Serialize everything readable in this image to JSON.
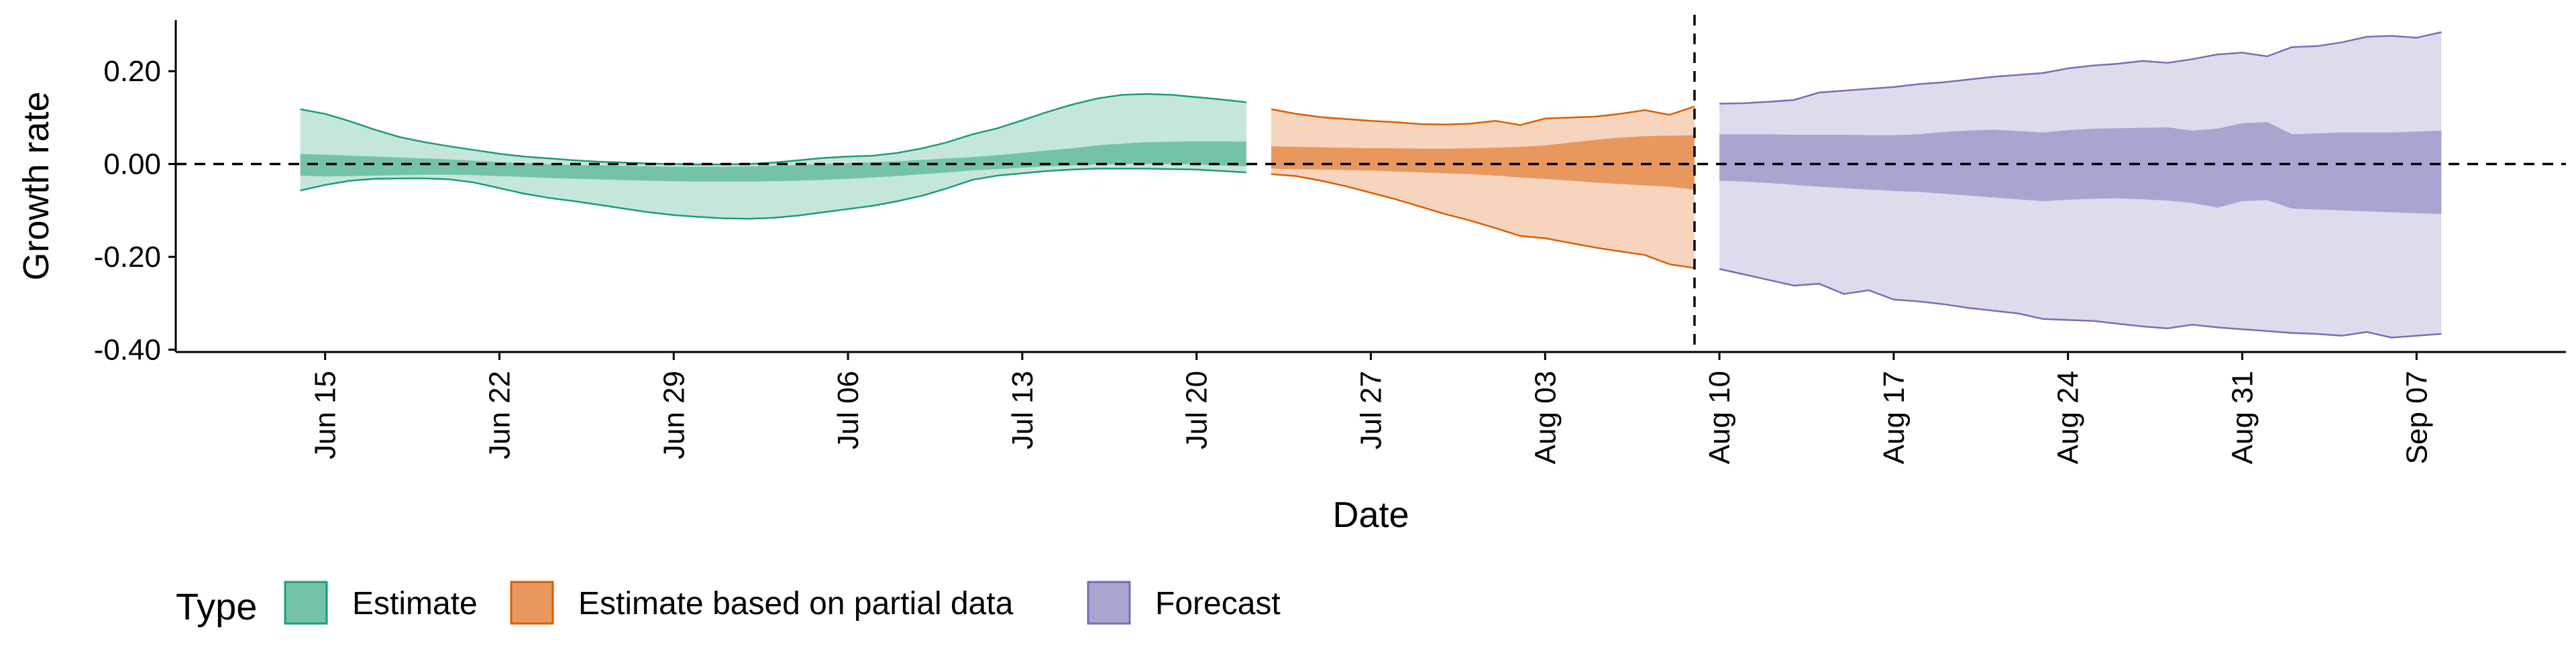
{
  "chart_data": {
    "type": "area",
    "xlabel": "Date",
    "ylabel": "Growth rate",
    "xlim": [
      "2020-06-09",
      "2020-09-13"
    ],
    "ylim": [
      -0.405,
      0.31
    ],
    "reference_line_y": 0.0,
    "vertical_line_x": "2020-08-09",
    "x_ticks": [
      {
        "date": "2020-06-15",
        "label": "Jun 15"
      },
      {
        "date": "2020-06-22",
        "label": "Jun 22"
      },
      {
        "date": "2020-06-29",
        "label": "Jun 29"
      },
      {
        "date": "2020-07-06",
        "label": "Jul 06"
      },
      {
        "date": "2020-07-13",
        "label": "Jul 13"
      },
      {
        "date": "2020-07-20",
        "label": "Jul 20"
      },
      {
        "date": "2020-07-27",
        "label": "Jul 27"
      },
      {
        "date": "2020-08-03",
        "label": "Aug 03"
      },
      {
        "date": "2020-08-10",
        "label": "Aug 10"
      },
      {
        "date": "2020-08-17",
        "label": "Aug 17"
      },
      {
        "date": "2020-08-24",
        "label": "Aug 24"
      },
      {
        "date": "2020-08-31",
        "label": "Aug 31"
      },
      {
        "date": "2020-09-07",
        "label": "Sep 07"
      }
    ],
    "y_ticks": [
      {
        "value": 0.2,
        "label": "0.20"
      },
      {
        "value": 0.0,
        "label": "0.00"
      },
      {
        "value": -0.2,
        "label": "-0.20"
      },
      {
        "value": -0.4,
        "label": "-0.40"
      }
    ],
    "legend": {
      "title": "Type",
      "placement": "bottom",
      "items": [
        {
          "label": "Estimate",
          "series": "estimate"
        },
        {
          "label": "Estimate based on partial data",
          "series": "partial"
        },
        {
          "label": "Forecast",
          "series": "forecast"
        }
      ]
    },
    "series": [
      {
        "key": "estimate",
        "name": "Estimate",
        "color": "#1b9e77",
        "outer_fill": "#c5e6dc",
        "inner_fill": "#74c3a8",
        "points": [
          {
            "x": "2020-06-14",
            "lower90": -0.057,
            "lower50": -0.025,
            "upper50": 0.022,
            "upper90": 0.118
          },
          {
            "x": "2020-06-15",
            "lower90": -0.045,
            "lower50": -0.027,
            "upper50": 0.02,
            "upper90": 0.108
          },
          {
            "x": "2020-06-16",
            "lower90": -0.036,
            "lower50": -0.026,
            "upper50": 0.018,
            "upper90": 0.092
          },
          {
            "x": "2020-06-17",
            "lower90": -0.032,
            "lower50": -0.025,
            "upper50": 0.016,
            "upper90": 0.074
          },
          {
            "x": "2020-06-18",
            "lower90": -0.031,
            "lower50": -0.024,
            "upper50": 0.014,
            "upper90": 0.058
          },
          {
            "x": "2020-06-19",
            "lower90": -0.031,
            "lower50": -0.023,
            "upper50": 0.012,
            "upper90": 0.047
          },
          {
            "x": "2020-06-20",
            "lower90": -0.033,
            "lower50": -0.023,
            "upper50": 0.01,
            "upper90": 0.038
          },
          {
            "x": "2020-06-21",
            "lower90": -0.04,
            "lower50": -0.024,
            "upper50": 0.007,
            "upper90": 0.03
          },
          {
            "x": "2020-06-22",
            "lower90": -0.052,
            "lower50": -0.026,
            "upper50": 0.004,
            "upper90": 0.022
          },
          {
            "x": "2020-06-23",
            "lower90": -0.064,
            "lower50": -0.028,
            "upper50": 0.002,
            "upper90": 0.016
          },
          {
            "x": "2020-06-24",
            "lower90": -0.073,
            "lower50": -0.03,
            "upper50": 0.0,
            "upper90": 0.012
          },
          {
            "x": "2020-06-25",
            "lower90": -0.08,
            "lower50": -0.032,
            "upper50": -0.002,
            "upper90": 0.008
          },
          {
            "x": "2020-06-26",
            "lower90": -0.088,
            "lower50": -0.033,
            "upper50": -0.003,
            "upper90": 0.005
          },
          {
            "x": "2020-06-27",
            "lower90": -0.096,
            "lower50": -0.035,
            "upper50": -0.004,
            "upper90": 0.003
          },
          {
            "x": "2020-06-28",
            "lower90": -0.104,
            "lower50": -0.036,
            "upper50": -0.005,
            "upper90": 0.001
          },
          {
            "x": "2020-06-29",
            "lower90": -0.11,
            "lower50": -0.037,
            "upper50": -0.006,
            "upper90": 0.0
          },
          {
            "x": "2020-06-30",
            "lower90": -0.114,
            "lower50": -0.038,
            "upper50": -0.006,
            "upper90": -0.001
          },
          {
            "x": "2020-07-01",
            "lower90": -0.117,
            "lower50": -0.038,
            "upper50": -0.006,
            "upper90": -0.001
          },
          {
            "x": "2020-07-02",
            "lower90": -0.118,
            "lower50": -0.038,
            "upper50": -0.005,
            "upper90": 0.0
          },
          {
            "x": "2020-07-03",
            "lower90": -0.116,
            "lower50": -0.037,
            "upper50": -0.004,
            "upper90": 0.003
          },
          {
            "x": "2020-07-04",
            "lower90": -0.111,
            "lower50": -0.036,
            "upper50": -0.002,
            "upper90": 0.008
          },
          {
            "x": "2020-07-05",
            "lower90": -0.104,
            "lower50": -0.034,
            "upper50": 0.0,
            "upper90": 0.013
          },
          {
            "x": "2020-07-06",
            "lower90": -0.097,
            "lower50": -0.032,
            "upper50": 0.002,
            "upper90": 0.016
          },
          {
            "x": "2020-07-07",
            "lower90": -0.09,
            "lower50": -0.029,
            "upper50": 0.004,
            "upper90": 0.018
          },
          {
            "x": "2020-07-08",
            "lower90": -0.08,
            "lower50": -0.026,
            "upper50": 0.006,
            "upper90": 0.024
          },
          {
            "x": "2020-07-09",
            "lower90": -0.068,
            "lower50": -0.022,
            "upper50": 0.009,
            "upper90": 0.034
          },
          {
            "x": "2020-07-10",
            "lower90": -0.052,
            "lower50": -0.018,
            "upper50": 0.012,
            "upper90": 0.047
          },
          {
            "x": "2020-07-11",
            "lower90": -0.034,
            "lower50": -0.014,
            "upper50": 0.015,
            "upper90": 0.064
          },
          {
            "x": "2020-07-12",
            "lower90": -0.025,
            "lower50": -0.011,
            "upper50": 0.019,
            "upper90": 0.077
          },
          {
            "x": "2020-07-13",
            "lower90": -0.02,
            "lower50": -0.008,
            "upper50": 0.024,
            "upper90": 0.094
          },
          {
            "x": "2020-07-14",
            "lower90": -0.015,
            "lower50": -0.005,
            "upper50": 0.029,
            "upper90": 0.112
          },
          {
            "x": "2020-07-15",
            "lower90": -0.012,
            "lower50": -0.003,
            "upper50": 0.034,
            "upper90": 0.128
          },
          {
            "x": "2020-07-16",
            "lower90": -0.01,
            "lower50": -0.001,
            "upper50": 0.04,
            "upper90": 0.141
          },
          {
            "x": "2020-07-17",
            "lower90": -0.01,
            "lower50": 0.0,
            "upper50": 0.044,
            "upper90": 0.149
          },
          {
            "x": "2020-07-18",
            "lower90": -0.01,
            "lower50": 0.0,
            "upper50": 0.047,
            "upper90": 0.151
          },
          {
            "x": "2020-07-19",
            "lower90": -0.011,
            "lower50": 0.0,
            "upper50": 0.048,
            "upper90": 0.149
          },
          {
            "x": "2020-07-20",
            "lower90": -0.012,
            "lower50": -0.001,
            "upper50": 0.049,
            "upper90": 0.144
          },
          {
            "x": "2020-07-21",
            "lower90": -0.015,
            "lower50": -0.003,
            "upper50": 0.049,
            "upper90": 0.139
          },
          {
            "x": "2020-07-22",
            "lower90": -0.018,
            "lower50": -0.005,
            "upper50": 0.048,
            "upper90": 0.133
          }
        ]
      },
      {
        "key": "partial",
        "name": "Estimate based on partial data",
        "color": "#d95f02",
        "outer_fill": "#f7d4bd",
        "inner_fill": "#e8985e",
        "points": [
          {
            "x": "2020-07-23",
            "lower90": -0.022,
            "lower50": -0.01,
            "upper50": 0.038,
            "upper90": 0.118
          },
          {
            "x": "2020-07-24",
            "lower90": -0.026,
            "lower50": -0.011,
            "upper50": 0.037,
            "upper90": 0.108
          },
          {
            "x": "2020-07-25",
            "lower90": -0.036,
            "lower50": -0.012,
            "upper50": 0.036,
            "upper90": 0.101
          },
          {
            "x": "2020-07-26",
            "lower90": -0.048,
            "lower50": -0.013,
            "upper50": 0.035,
            "upper90": 0.097
          },
          {
            "x": "2020-07-27",
            "lower90": -0.062,
            "lower50": -0.014,
            "upper50": 0.034,
            "upper90": 0.093
          },
          {
            "x": "2020-07-28",
            "lower90": -0.076,
            "lower50": -0.016,
            "upper50": 0.034,
            "upper90": 0.09
          },
          {
            "x": "2020-07-29",
            "lower90": -0.092,
            "lower50": -0.018,
            "upper50": 0.033,
            "upper90": 0.086
          },
          {
            "x": "2020-07-30",
            "lower90": -0.108,
            "lower50": -0.02,
            "upper50": 0.033,
            "upper90": 0.085
          },
          {
            "x": "2020-07-31",
            "lower90": -0.122,
            "lower50": -0.022,
            "upper50": 0.034,
            "upper90": 0.087
          },
          {
            "x": "2020-08-01",
            "lower90": -0.138,
            "lower50": -0.025,
            "upper50": 0.035,
            "upper90": 0.093
          },
          {
            "x": "2020-08-02",
            "lower90": -0.155,
            "lower50": -0.029,
            "upper50": 0.037,
            "upper90": 0.084
          },
          {
            "x": "2020-08-03",
            "lower90": -0.16,
            "lower50": -0.032,
            "upper50": 0.04,
            "upper90": 0.098
          },
          {
            "x": "2020-08-04",
            "lower90": -0.17,
            "lower50": -0.036,
            "upper50": 0.046,
            "upper90": 0.1
          },
          {
            "x": "2020-08-05",
            "lower90": -0.18,
            "lower50": -0.04,
            "upper50": 0.052,
            "upper90": 0.102
          },
          {
            "x": "2020-08-06",
            "lower90": -0.188,
            "lower50": -0.043,
            "upper50": 0.057,
            "upper90": 0.108
          },
          {
            "x": "2020-08-07",
            "lower90": -0.196,
            "lower50": -0.046,
            "upper50": 0.06,
            "upper90": 0.116
          },
          {
            "x": "2020-08-08",
            "lower90": -0.216,
            "lower50": -0.049,
            "upper50": 0.061,
            "upper90": 0.106
          },
          {
            "x": "2020-08-09",
            "lower90": -0.224,
            "lower50": -0.055,
            "upper50": 0.062,
            "upper90": 0.124
          }
        ]
      },
      {
        "key": "forecast",
        "name": "Forecast",
        "color": "#7570b3",
        "outer_fill": "#dddcec",
        "inner_fill": "#a8a5d1",
        "points": [
          {
            "x": "2020-08-10",
            "lower90": -0.226,
            "lower50": -0.036,
            "upper50": 0.064,
            "upper90": 0.13
          },
          {
            "x": "2020-08-11",
            "lower90": -0.238,
            "lower50": -0.038,
            "upper50": 0.064,
            "upper90": 0.131
          },
          {
            "x": "2020-08-12",
            "lower90": -0.25,
            "lower50": -0.041,
            "upper50": 0.064,
            "upper90": 0.134
          },
          {
            "x": "2020-08-13",
            "lower90": -0.262,
            "lower50": -0.045,
            "upper50": 0.063,
            "upper90": 0.138
          },
          {
            "x": "2020-08-14",
            "lower90": -0.258,
            "lower50": -0.049,
            "upper50": 0.063,
            "upper90": 0.154
          },
          {
            "x": "2020-08-15",
            "lower90": -0.28,
            "lower50": -0.052,
            "upper50": 0.063,
            "upper90": 0.158
          },
          {
            "x": "2020-08-16",
            "lower90": -0.272,
            "lower50": -0.055,
            "upper50": 0.062,
            "upper90": 0.162
          },
          {
            "x": "2020-08-17",
            "lower90": -0.292,
            "lower50": -0.058,
            "upper50": 0.062,
            "upper90": 0.166
          },
          {
            "x": "2020-08-18",
            "lower90": -0.296,
            "lower50": -0.06,
            "upper50": 0.064,
            "upper90": 0.172
          },
          {
            "x": "2020-08-19",
            "lower90": -0.302,
            "lower50": -0.064,
            "upper50": 0.069,
            "upper90": 0.176
          },
          {
            "x": "2020-08-20",
            "lower90": -0.31,
            "lower50": -0.068,
            "upper50": 0.072,
            "upper90": 0.182
          },
          {
            "x": "2020-08-21",
            "lower90": -0.316,
            "lower50": -0.072,
            "upper50": 0.074,
            "upper90": 0.188
          },
          {
            "x": "2020-08-22",
            "lower90": -0.322,
            "lower50": -0.076,
            "upper50": 0.071,
            "upper90": 0.192
          },
          {
            "x": "2020-08-23",
            "lower90": -0.334,
            "lower50": -0.08,
            "upper50": 0.068,
            "upper90": 0.196
          },
          {
            "x": "2020-08-24",
            "lower90": -0.336,
            "lower50": -0.077,
            "upper50": 0.073,
            "upper90": 0.206
          },
          {
            "x": "2020-08-25",
            "lower90": -0.338,
            "lower50": -0.075,
            "upper50": 0.076,
            "upper90": 0.212
          },
          {
            "x": "2020-08-26",
            "lower90": -0.344,
            "lower50": -0.074,
            "upper50": 0.077,
            "upper90": 0.216
          },
          {
            "x": "2020-08-27",
            "lower90": -0.35,
            "lower50": -0.076,
            "upper50": 0.078,
            "upper90": 0.222
          },
          {
            "x": "2020-08-28",
            "lower90": -0.354,
            "lower50": -0.079,
            "upper50": 0.079,
            "upper90": 0.218
          },
          {
            "x": "2020-08-29",
            "lower90": -0.346,
            "lower50": -0.084,
            "upper50": 0.072,
            "upper90": 0.226
          },
          {
            "x": "2020-08-30",
            "lower90": -0.352,
            "lower50": -0.094,
            "upper50": 0.076,
            "upper90": 0.236
          },
          {
            "x": "2020-08-31",
            "lower90": -0.356,
            "lower50": -0.08,
            "upper50": 0.088,
            "upper90": 0.24
          },
          {
            "x": "2020-09-01",
            "lower90": -0.36,
            "lower50": -0.078,
            "upper50": 0.09,
            "upper90": 0.232
          },
          {
            "x": "2020-09-02",
            "lower90": -0.364,
            "lower50": -0.096,
            "upper50": 0.064,
            "upper90": 0.252
          },
          {
            "x": "2020-09-03",
            "lower90": -0.366,
            "lower50": -0.098,
            "upper50": 0.066,
            "upper90": 0.254
          },
          {
            "x": "2020-09-04",
            "lower90": -0.37,
            "lower50": -0.1,
            "upper50": 0.068,
            "upper90": 0.262
          },
          {
            "x": "2020-09-05",
            "lower90": -0.362,
            "lower50": -0.102,
            "upper50": 0.068,
            "upper90": 0.274
          },
          {
            "x": "2020-09-06",
            "lower90": -0.374,
            "lower50": -0.104,
            "upper50": 0.068,
            "upper90": 0.276
          },
          {
            "x": "2020-09-07",
            "lower90": -0.37,
            "lower50": -0.106,
            "upper50": 0.07,
            "upper90": 0.272
          },
          {
            "x": "2020-09-08",
            "lower90": -0.366,
            "lower50": -0.108,
            "upper50": 0.072,
            "upper90": 0.284
          }
        ]
      }
    ]
  }
}
